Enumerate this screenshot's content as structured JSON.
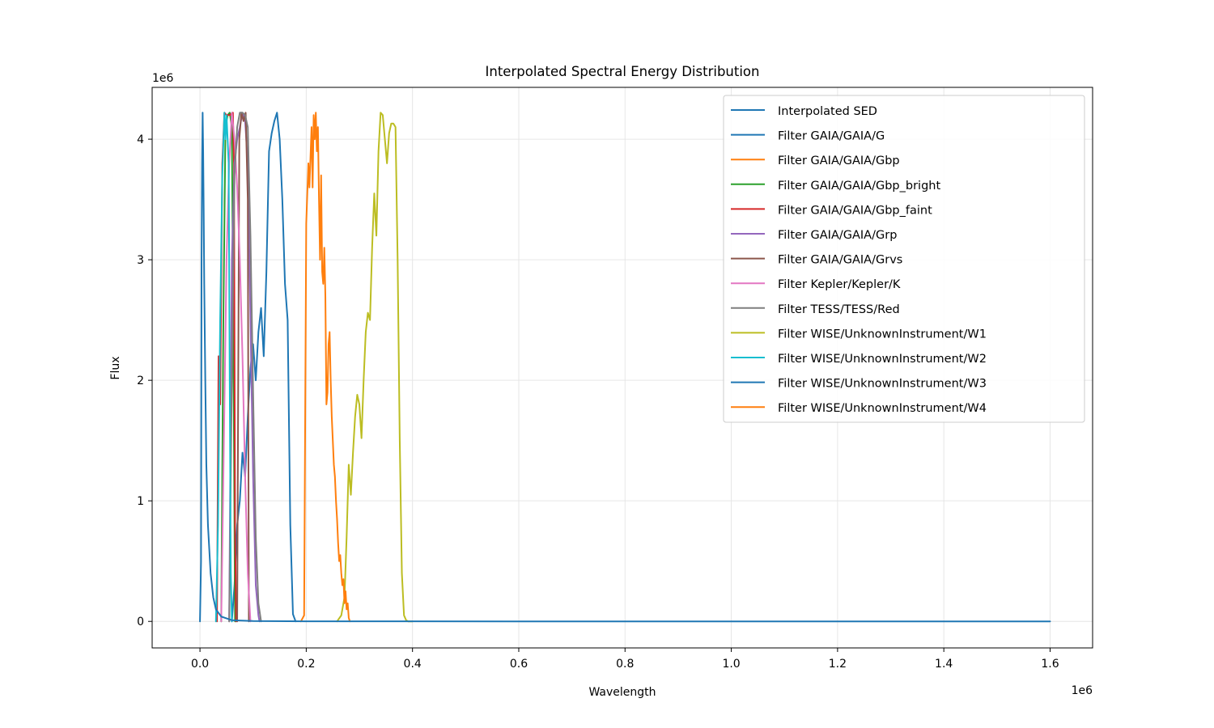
{
  "chart_data": {
    "type": "line",
    "title": "Interpolated Spectral Energy Distribution",
    "xlabel": "Wavelength",
    "ylabel": "Flux",
    "x_offset_label": "1e6",
    "y_offset_label": "1e6",
    "xlim": [
      -90000,
      1680000
    ],
    "ylim": [
      -220000,
      4430000
    ],
    "x_ticks": [
      0,
      200000,
      400000,
      600000,
      800000,
      1000000,
      1200000,
      1400000,
      1600000
    ],
    "x_tick_labels": [
      "0.0",
      "0.2",
      "0.4",
      "0.6",
      "0.8",
      "1.0",
      "1.2",
      "1.4",
      "1.6"
    ],
    "y_ticks": [
      0,
      1000000,
      2000000,
      3000000,
      4000000
    ],
    "y_tick_labels": [
      "0",
      "1",
      "2",
      "3",
      "4"
    ],
    "grid": true,
    "legend_position": "top-right",
    "series": [
      {
        "name": "Interpolated SED",
        "color": "#1f77b4",
        "x": [
          0,
          2000,
          3000,
          4000,
          5000,
          6000,
          7000,
          8000,
          10000,
          12000,
          15000,
          20000,
          25000,
          30000,
          40000,
          60000,
          100000,
          200000,
          600000,
          1000000,
          1600000
        ],
        "y": [
          0,
          500000,
          3000000,
          3800000,
          4220000,
          3900000,
          3400000,
          2800000,
          2000000,
          1300000,
          800000,
          400000,
          200000,
          100000,
          40000,
          10000,
          3000,
          500,
          50,
          10,
          0
        ]
      },
      {
        "name": "Filter GAIA/GAIA/G",
        "color": "#1f77b4",
        "x": [
          60000,
          65000,
          70000,
          75000,
          80000,
          85000,
          90000,
          95000,
          100000,
          105000,
          110000,
          115000,
          120000,
          125000,
          130000,
          135000,
          140000,
          145000,
          150000,
          155000,
          160000,
          165000,
          170000,
          175000,
          180000
        ],
        "y": [
          0,
          300000,
          800000,
          1000000,
          1400000,
          1200000,
          1700000,
          2100000,
          2300000,
          2000000,
          2400000,
          2600000,
          2200000,
          2900000,
          3900000,
          4050000,
          4150000,
          4220000,
          4000000,
          3500000,
          2800000,
          2500000,
          800000,
          60000,
          0
        ]
      },
      {
        "name": "Filter GAIA/GAIA/Gbp",
        "color": "#ff7f0e",
        "x": [
          0
        ],
        "y": [
          0
        ]
      },
      {
        "name": "Filter GAIA/GAIA/Gbp_bright",
        "color": "#2ca02c",
        "x": [
          40000,
          44000,
          48000,
          52000,
          56000,
          60000,
          64000,
          66000
        ],
        "y": [
          0,
          2500000,
          4100000,
          4200000,
          4220000,
          4100000,
          1500000,
          0
        ]
      },
      {
        "name": "Filter GAIA/GAIA/Gbp_faint",
        "color": "#d62728",
        "x": [
          32000,
          35000,
          38000,
          42000,
          46000,
          50000,
          56000,
          62000,
          64000,
          66000,
          68000
        ],
        "y": [
          0,
          2200000,
          1800000,
          3800000,
          4220000,
          4200000,
          4200000,
          4220000,
          3800000,
          800000,
          0
        ]
      },
      {
        "name": "Filter GAIA/GAIA/Grp",
        "color": "#9467bd",
        "x": [
          55000,
          60000,
          65000,
          70000,
          75000,
          80000,
          85000,
          90000,
          95000,
          100000,
          105000,
          110000,
          112000
        ],
        "y": [
          0,
          3000000,
          3800000,
          4000000,
          4100000,
          4220000,
          4150000,
          3800000,
          2500000,
          1200000,
          300000,
          50000,
          0
        ]
      },
      {
        "name": "Filter GAIA/GAIA/Grvs",
        "color": "#8c564b",
        "x": [
          70000,
          74000,
          78000,
          82000,
          86000,
          90000,
          92000
        ],
        "y": [
          0,
          4000000,
          4220000,
          4150000,
          4220000,
          3500000,
          0
        ]
      },
      {
        "name": "Filter Kepler/Kepler/K",
        "color": "#e377c2",
        "x": [
          40000,
          45000,
          50000,
          55000,
          60000,
          65000,
          70000,
          75000,
          80000,
          85000,
          90000,
          95000
        ],
        "y": [
          0,
          1500000,
          3000000,
          3800000,
          4220000,
          4000000,
          3600000,
          3000000,
          2200000,
          1200000,
          400000,
          0
        ]
      },
      {
        "name": "Filter TESS/TESS/Red",
        "color": "#7f7f7f",
        "x": [
          55000,
          60000,
          65000,
          70000,
          75000,
          80000,
          85000,
          90000,
          95000,
          100000,
          105000,
          110000,
          115000
        ],
        "y": [
          0,
          2000000,
          3700000,
          4100000,
          4220000,
          4220000,
          4200000,
          4100000,
          3200000,
          1900000,
          700000,
          150000,
          0
        ]
      },
      {
        "name": "Filter WISE/UnknownInstrument/W1",
        "color": "#bcbd22",
        "x": [
          258000,
          266000,
          272000,
          276000,
          280000,
          284000,
          288000,
          292000,
          296000,
          300000,
          304000,
          308000,
          312000,
          316000,
          320000,
          324000,
          328000,
          332000,
          336000,
          340000,
          344000,
          348000,
          352000,
          356000,
          360000,
          364000,
          368000,
          372000,
          376000,
          380000,
          384000,
          388000,
          392000,
          400000
        ],
        "y": [
          0,
          50000,
          200000,
          700000,
          1300000,
          1050000,
          1400000,
          1700000,
          1880000,
          1800000,
          1520000,
          2000000,
          2400000,
          2560000,
          2500000,
          3100000,
          3550000,
          3200000,
          3900000,
          4220000,
          4200000,
          4000000,
          3800000,
          4050000,
          4130000,
          4130000,
          4100000,
          3000000,
          1500000,
          400000,
          50000,
          10000,
          0,
          0
        ]
      },
      {
        "name": "Filter WISE/UnknownInstrument/W2",
        "color": "#17becf",
        "x": [
          30000,
          34000,
          38000,
          42000,
          46000,
          48000,
          50000,
          54000,
          56000,
          58000,
          60000
        ],
        "y": [
          0,
          800000,
          2500000,
          3700000,
          4220000,
          4000000,
          4200000,
          3800000,
          2000000,
          400000,
          0
        ]
      },
      {
        "name": "Filter WISE/UnknownInstrument/W3",
        "color": "#1f77b4",
        "x": [
          0
        ],
        "y": [
          0
        ]
      },
      {
        "name": "Filter WISE/UnknownInstrument/W4",
        "color": "#ff7f0e",
        "x": [
          190000,
          196000,
          200000,
          204000,
          206000,
          208000,
          210000,
          212000,
          214000,
          216000,
          218000,
          220000,
          222000,
          224000,
          226000,
          228000,
          230000,
          232000,
          234000,
          236000,
          238000,
          240000,
          242000,
          244000,
          246000,
          248000,
          250000,
          252000,
          254000,
          256000,
          258000,
          260000,
          262000,
          264000,
          266000,
          268000,
          270000,
          272000,
          274000,
          276000,
          278000,
          280000,
          282000
        ],
        "y": [
          0,
          50000,
          3300000,
          3800000,
          3600000,
          3850000,
          4100000,
          3600000,
          4200000,
          4000000,
          4220000,
          3900000,
          4100000,
          3500000,
          3000000,
          3700000,
          2900000,
          2800000,
          3100000,
          2700000,
          1800000,
          1900000,
          2300000,
          2400000,
          2000000,
          1700000,
          1500000,
          1300000,
          1200000,
          1000000,
          850000,
          650000,
          500000,
          550000,
          400000,
          300000,
          350000,
          150000,
          250000,
          100000,
          150000,
          30000,
          0
        ]
      }
    ]
  }
}
